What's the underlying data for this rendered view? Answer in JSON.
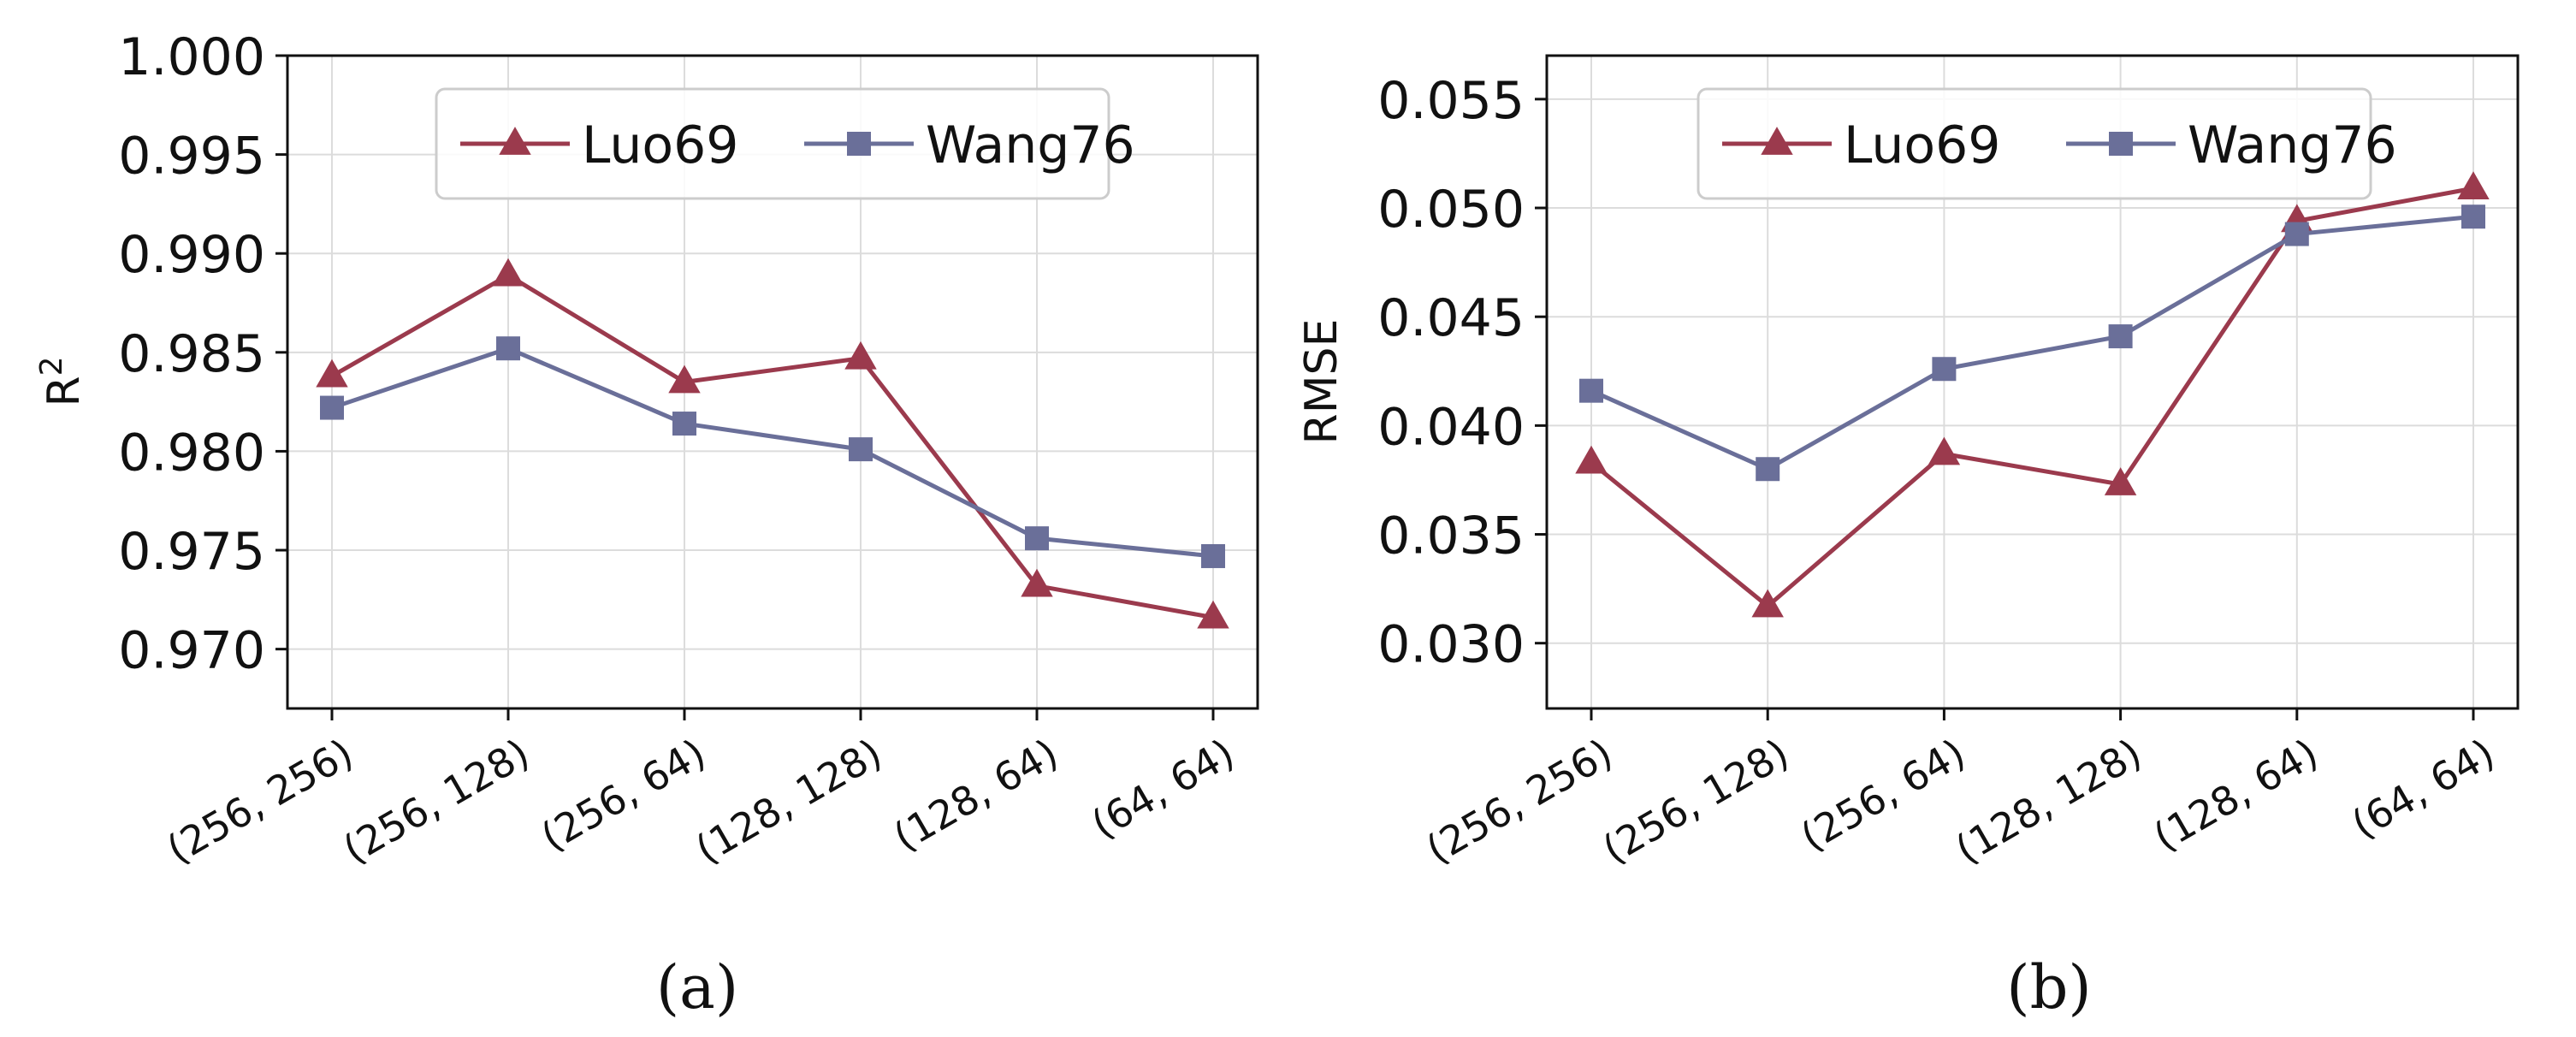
{
  "chart_data": [
    {
      "type": "line",
      "panel_label": "(a)",
      "title": "",
      "xlabel": "",
      "ylabel": "R",
      "ylabel_superscript": "2",
      "categories": [
        "(256, 256)",
        "(256, 128)",
        "(256, 64)",
        "(128, 128)",
        "(128, 64)",
        "(64, 64)"
      ],
      "ylim": [
        0.967,
        1.0
      ],
      "yticks": [
        0.97,
        0.975,
        0.98,
        0.985,
        0.99,
        0.995,
        1.0
      ],
      "ytick_labels": [
        "0.970",
        "0.975",
        "0.980",
        "0.985",
        "0.990",
        "0.995",
        "1.000"
      ],
      "grid": true,
      "legend": "upper-center",
      "series": [
        {
          "name": "Luo69",
          "marker": "triangle",
          "color": "#9b3a4d",
          "values": [
            0.9838,
            0.9889,
            0.9835,
            0.9847,
            0.9732,
            0.9716
          ]
        },
        {
          "name": "Wang76",
          "marker": "square",
          "color": "#6a6f99",
          "values": [
            0.9822,
            0.9852,
            0.9814,
            0.9801,
            0.9756,
            0.9747
          ]
        }
      ]
    },
    {
      "type": "line",
      "panel_label": "(b)",
      "title": "",
      "xlabel": "",
      "ylabel": "RMSE",
      "ylabel_superscript": "",
      "categories": [
        "(256, 256)",
        "(256, 128)",
        "(256, 64)",
        "(128, 128)",
        "(128, 64)",
        "(64, 64)"
      ],
      "ylim": [
        0.027,
        0.057
      ],
      "yticks": [
        0.03,
        0.035,
        0.04,
        0.045,
        0.05,
        0.055
      ],
      "ytick_labels": [
        "0.030",
        "0.035",
        "0.040",
        "0.045",
        "0.050",
        "0.055"
      ],
      "grid": true,
      "legend": "upper-center",
      "series": [
        {
          "name": "Luo69",
          "marker": "triangle",
          "color": "#9b3a4d",
          "values": [
            0.0383,
            0.0317,
            0.0387,
            0.0373,
            0.0494,
            0.0509
          ]
        },
        {
          "name": "Wang76",
          "marker": "square",
          "color": "#6a6f99",
          "values": [
            0.0416,
            0.038,
            0.0426,
            0.0441,
            0.0488,
            0.0496
          ]
        }
      ]
    }
  ]
}
